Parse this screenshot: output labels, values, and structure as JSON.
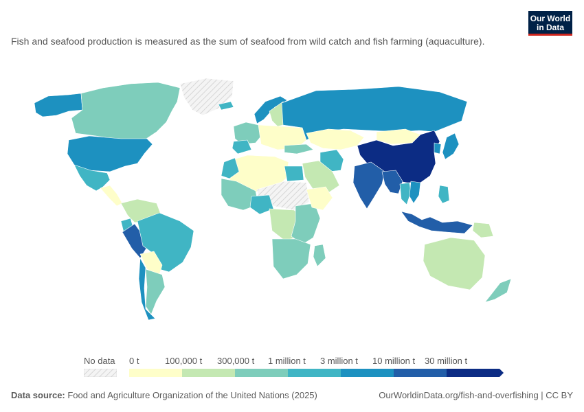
{
  "subtitle": "Fish and seafood production is measured as the sum of seafood from wild catch and fish farming (aquaculture).",
  "logo": {
    "line1": "Our World",
    "line2": "in Data"
  },
  "legend": {
    "no_data_label": "No data",
    "bins": [
      {
        "label": "0 t",
        "color": "#fefec9"
      },
      {
        "label": "100,000 t",
        "color": "#c4e8b2"
      },
      {
        "label": "300,000 t",
        "color": "#7ecdbb"
      },
      {
        "label": "1 million t",
        "color": "#40b5c4"
      },
      {
        "label": "3 million t",
        "color": "#1d91c0"
      },
      {
        "label": "10 million t",
        "color": "#225ea8"
      },
      {
        "label": "30 million t",
        "color": "#0c2c84"
      }
    ]
  },
  "footer": {
    "source_prefix": "Data source:",
    "source_text": " Food and Agriculture Organization of the United Nations (2025)",
    "link": "OurWorldinData.org/fish-and-overfishing | CC BY"
  },
  "regions": [
    {
      "name": "Alaska",
      "color": "#1d91c0"
    },
    {
      "name": "Canada",
      "color": "#7ecdbb"
    },
    {
      "name": "Greenland",
      "color": "no-data"
    },
    {
      "name": "United States",
      "color": "#1d91c0"
    },
    {
      "name": "Mexico",
      "color": "#40b5c4"
    },
    {
      "name": "Central America",
      "color": "#fefec9"
    },
    {
      "name": "Venezuela/Colombia",
      "color": "#c4e8b2"
    },
    {
      "name": "Ecuador",
      "color": "#40b5c4"
    },
    {
      "name": "Peru",
      "color": "#225ea8"
    },
    {
      "name": "Brazil",
      "color": "#40b5c4"
    },
    {
      "name": "Bolivia/Paraguay",
      "color": "#fefec9"
    },
    {
      "name": "Argentina",
      "color": "#7ecdbb"
    },
    {
      "name": "Chile",
      "color": "#1d91c0"
    },
    {
      "name": "Iceland",
      "color": "#40b5c4"
    },
    {
      "name": "Norway",
      "color": "#1d91c0"
    },
    {
      "name": "Sweden/Finland",
      "color": "#c4e8b2"
    },
    {
      "name": "Western Europe",
      "color": "#7ecdbb"
    },
    {
      "name": "Spain",
      "color": "#40b5c4"
    },
    {
      "name": "Eastern Europe",
      "color": "#fefec9"
    },
    {
      "name": "Russia",
      "color": "#1d91c0"
    },
    {
      "name": "Kazakhstan",
      "color": "#fefec9"
    },
    {
      "name": "Mongolia",
      "color": "#fefec9"
    },
    {
      "name": "China",
      "color": "#0c2c84"
    },
    {
      "name": "Japan",
      "color": "#1d91c0"
    },
    {
      "name": "Korea",
      "color": "#1d91c0"
    },
    {
      "name": "Turkey",
      "color": "#7ecdbb"
    },
    {
      "name": "Iran",
      "color": "#40b5c4"
    },
    {
      "name": "Saudi Arabia",
      "color": "#c4e8b2"
    },
    {
      "name": "India",
      "color": "#225ea8"
    },
    {
      "name": "Bangladesh/Myanmar",
      "color": "#225ea8"
    },
    {
      "name": "Thailand",
      "color": "#40b5c4"
    },
    {
      "name": "Vietnam",
      "color": "#1d91c0"
    },
    {
      "name": "Philippines",
      "color": "#40b5c4"
    },
    {
      "name": "Indonesia",
      "color": "#225ea8"
    },
    {
      "name": "Papua New Guinea",
      "color": "#c4e8b2"
    },
    {
      "name": "Australia",
      "color": "#c4e8b2"
    },
    {
      "name": "New Zealand",
      "color": "#7ecdbb"
    },
    {
      "name": "North Africa",
      "color": "#fefec9"
    },
    {
      "name": "Morocco",
      "color": "#40b5c4"
    },
    {
      "name": "Egypt",
      "color": "#40b5c4"
    },
    {
      "name": "Sudan/Chad/Niger",
      "color": "no-data"
    },
    {
      "name": "West Africa",
      "color": "#7ecdbb"
    },
    {
      "name": "Nigeria",
      "color": "#40b5c4"
    },
    {
      "name": "Central Africa",
      "color": "#c4e8b2"
    },
    {
      "name": "East Africa",
      "color": "#7ecdbb"
    },
    {
      "name": "Horn of Africa",
      "color": "#fefec9"
    },
    {
      "name": "Southern Africa",
      "color": "#7ecdbb"
    },
    {
      "name": "Madagascar",
      "color": "#7ecdbb"
    }
  ]
}
